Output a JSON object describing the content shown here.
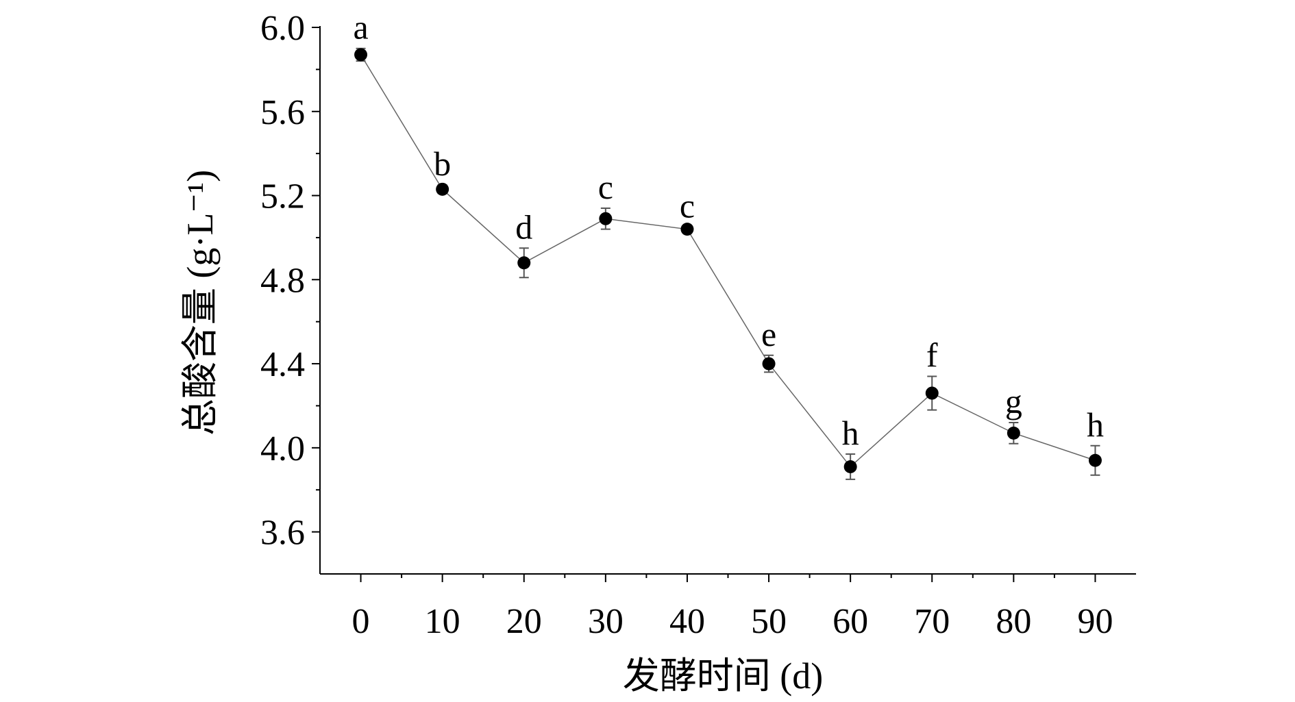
{
  "chart_data": {
    "type": "line",
    "x_label": "发酵时间 (d)",
    "y_label": "总酸含量 (g·L⁻¹)",
    "x": [
      0,
      10,
      20,
      30,
      40,
      50,
      60,
      70,
      80,
      90
    ],
    "series": [
      {
        "color": "#000000",
        "values": [
          5.87,
          5.23,
          4.88,
          5.09,
          5.04,
          4.4,
          3.91,
          4.26,
          4.07,
          3.94
        ],
        "errors": [
          0.03,
          0.02,
          0.07,
          0.05,
          0.01,
          0.04,
          0.06,
          0.08,
          0.05,
          0.07
        ],
        "significance_letters": [
          "a",
          "b",
          "d",
          "c",
          "c",
          "e",
          "h",
          "f",
          "g",
          "h"
        ]
      }
    ],
    "xlim": [
      -5,
      95
    ],
    "xticks": [
      0,
      10,
      20,
      30,
      40,
      50,
      60,
      70,
      80,
      90
    ],
    "ylim": [
      3.4,
      6.0
    ],
    "yticks": [
      {
        "value": 3.6,
        "label": "3.6"
      },
      {
        "value": 4.0,
        "label": "4.0"
      },
      {
        "value": 4.4,
        "label": "4.4"
      },
      {
        "value": 4.8,
        "label": "4.8"
      },
      {
        "value": 5.2,
        "label": "5.2"
      },
      {
        "value": 5.6,
        "label": "5.6"
      },
      {
        "value": 6.0,
        "label": "6.0"
      }
    ],
    "grid": false
  }
}
